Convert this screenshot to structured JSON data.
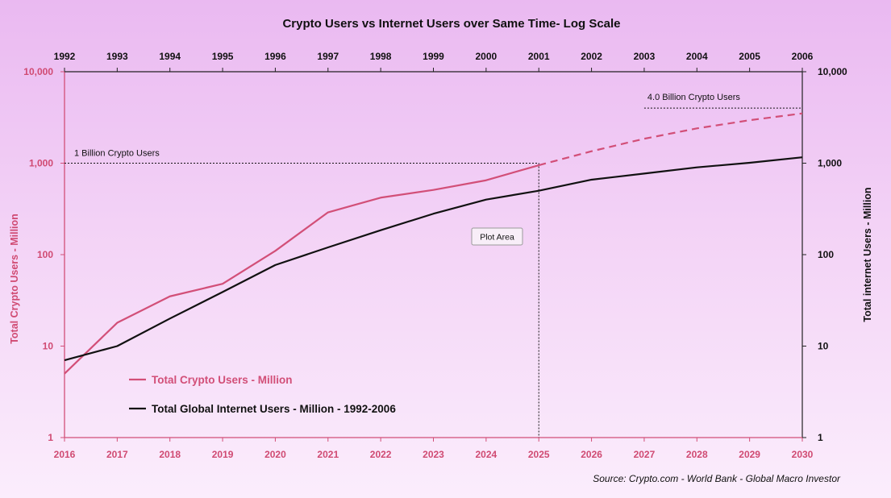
{
  "chart_data": {
    "type": "line",
    "title": "Crypto Users vs Internet Users over Same Time- Log Scale",
    "y_scale": "log",
    "grid": false,
    "x_bottom": {
      "categories": [
        "2016",
        "2017",
        "2018",
        "2019",
        "2020",
        "2021",
        "2022",
        "2023",
        "2024",
        "2025",
        "2026",
        "2027",
        "2028",
        "2029",
        "2030"
      ]
    },
    "x_top": {
      "categories": [
        "1992",
        "1993",
        "1994",
        "1995",
        "1996",
        "1997",
        "1998",
        "1999",
        "2000",
        "2001",
        "2002",
        "2003",
        "2004",
        "2005",
        "2006"
      ]
    },
    "y_left": {
      "label": "Total Crypto Users - Million",
      "ticks": [
        "10,000",
        "1,000",
        "100",
        "10",
        "1"
      ],
      "range": [
        1,
        10000
      ]
    },
    "y_right": {
      "label": "Total internet Users - Million",
      "ticks": [
        "10,000",
        "1,000",
        "100",
        "10",
        "1"
      ],
      "range": [
        1,
        10000
      ]
    },
    "legend_placement": "bottom-left",
    "series": [
      {
        "name": "Total Crypto Users - Million",
        "axis": "bottom",
        "color": "#d24f78",
        "actual_values": [
          5,
          18,
          35,
          48,
          110,
          290,
          420,
          510,
          650,
          950
        ],
        "projected_values": [
          950,
          1350,
          1850,
          2400,
          2950,
          3500
        ],
        "projected_categories": [
          "2025",
          "2026",
          "2027",
          "2028",
          "2029",
          "2030"
        ]
      },
      {
        "name": "Total Global Internet Users - Million - 1992-2006",
        "axis": "top",
        "color": "#111111",
        "values": [
          7,
          10,
          20,
          39,
          77,
          120,
          185,
          280,
          400,
          500,
          660,
          770,
          900,
          1010,
          1160
        ]
      }
    ],
    "annotations": {
      "one_billion": "1 Billion Crypto Users",
      "four_billion": "4.0 Billion Crypto Users",
      "plot_area": "Plot Area"
    },
    "source": "Source:   Crypto.com - World Bank - Global Macro Investor"
  }
}
